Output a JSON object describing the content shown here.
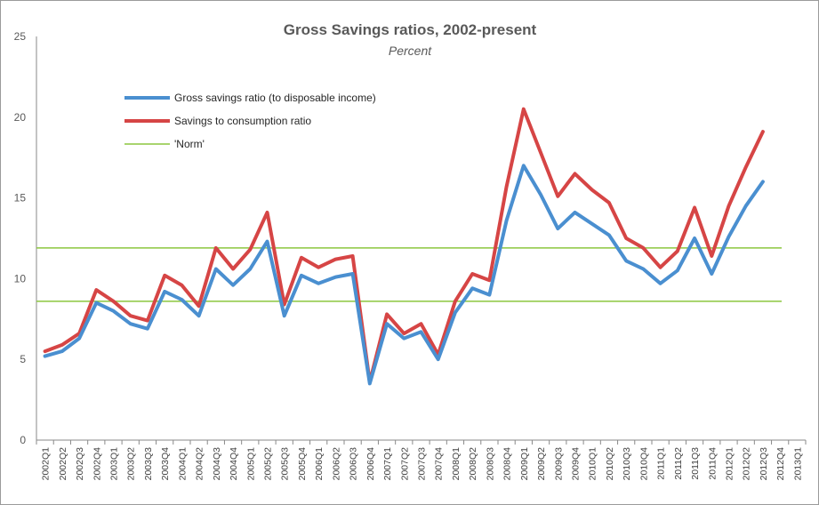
{
  "chart_data": {
    "type": "line",
    "title": "Gross Savings ratios, 2002-present",
    "subtitle": "Percent",
    "xlabel": "",
    "ylabel": "",
    "ylim": [
      0,
      25
    ],
    "yticks": [
      "0",
      "5",
      "10",
      "15",
      "20",
      "25"
    ],
    "grid": false,
    "legend_position": "top-left",
    "categories": [
      "2002Q1",
      "2002Q2",
      "2002Q3",
      "2002Q4",
      "2003Q1",
      "2003Q2",
      "2003Q3",
      "2003Q4",
      "2004Q1",
      "2004Q2",
      "2004Q3",
      "2004Q4",
      "2005Q1",
      "2005Q2",
      "2005Q3",
      "2005Q4",
      "2006Q1",
      "2006Q2",
      "2006Q3",
      "2006Q4",
      "2007Q1",
      "2007Q2",
      "2007Q3",
      "2007Q4",
      "2008Q1",
      "2008Q2",
      "2008Q3",
      "2008Q4",
      "2009Q1",
      "2009Q2",
      "2009Q3",
      "2009Q4",
      "2010Q1",
      "2010Q2",
      "2010Q3",
      "2010Q4",
      "2011Q1",
      "2011Q2",
      "2011Q3",
      "2011Q4",
      "2012Q1",
      "2012Q2",
      "2012Q3",
      "2012Q4",
      "2013Q1"
    ],
    "series": [
      {
        "name": "Gross savings ratio (to disposable income)",
        "color": "#4a8fd0",
        "values": [
          5.2,
          5.5,
          6.3,
          8.5,
          8.0,
          7.2,
          6.9,
          9.2,
          8.7,
          7.7,
          10.6,
          9.6,
          10.6,
          12.3,
          7.7,
          10.2,
          9.7,
          10.1,
          10.3,
          3.5,
          7.2,
          6.3,
          6.7,
          5.0,
          7.9,
          9.4,
          9.0,
          13.6,
          17.0,
          15.2,
          13.1,
          14.1,
          13.4,
          12.7,
          11.1,
          10.6,
          9.7,
          10.5,
          12.5,
          10.3,
          12.6,
          14.5,
          16.0,
          null,
          null
        ]
      },
      {
        "name": "Savings to consumption ratio",
        "color": "#d64545",
        "values": [
          5.5,
          5.9,
          6.6,
          9.3,
          8.6,
          7.7,
          7.4,
          10.2,
          9.6,
          8.3,
          11.9,
          10.6,
          11.8,
          14.1,
          8.4,
          11.3,
          10.7,
          11.2,
          11.4,
          3.6,
          7.8,
          6.6,
          7.2,
          5.3,
          8.6,
          10.3,
          9.9,
          15.7,
          20.5,
          17.8,
          15.1,
          16.5,
          15.5,
          14.7,
          12.5,
          11.9,
          10.7,
          11.7,
          14.4,
          11.4,
          14.5,
          16.9,
          19.1,
          null,
          null
        ]
      },
      {
        "name": "'Norm'",
        "color": "#8cc63f",
        "lines": [
          11.9,
          8.6
        ]
      }
    ]
  }
}
